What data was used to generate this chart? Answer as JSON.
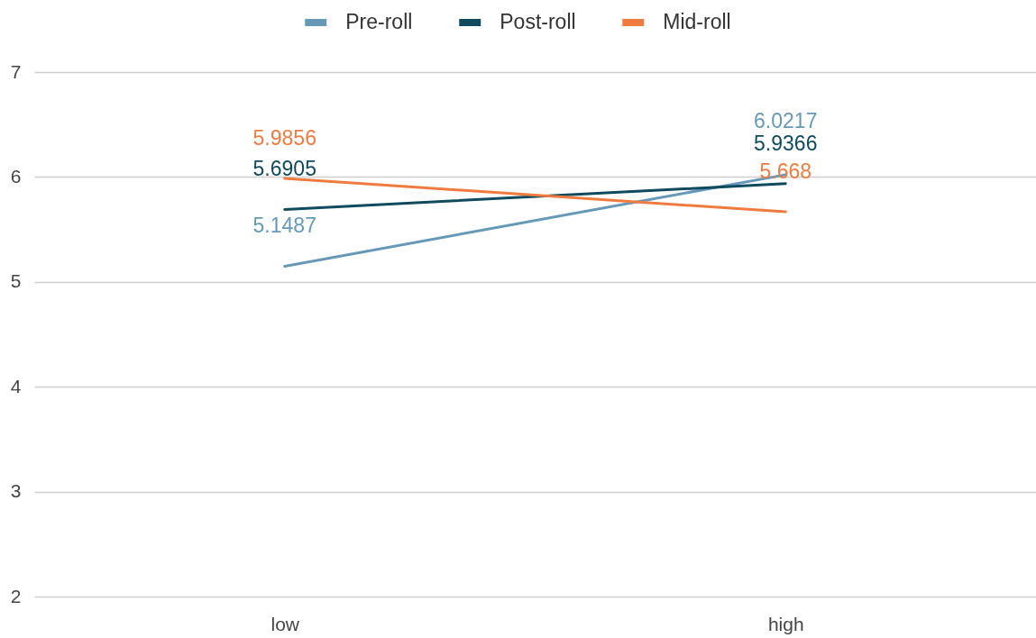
{
  "chart_data": {
    "type": "line",
    "categories": [
      "low",
      "high"
    ],
    "series": [
      {
        "name": "Pre-roll",
        "color": "#6699b8",
        "values": [
          5.1487,
          6.0217
        ]
      },
      {
        "name": "Post-roll",
        "color": "#0f4a5e",
        "values": [
          5.6905,
          5.9366
        ]
      },
      {
        "name": "Mid-roll",
        "color": "#f07b3f",
        "values": [
          5.9856,
          5.668
        ]
      }
    ],
    "ylim": [
      2,
      7
    ],
    "yticks": [
      2,
      3,
      4,
      5,
      6,
      7
    ],
    "grid": "y",
    "legend": "top",
    "data_labels": true
  }
}
